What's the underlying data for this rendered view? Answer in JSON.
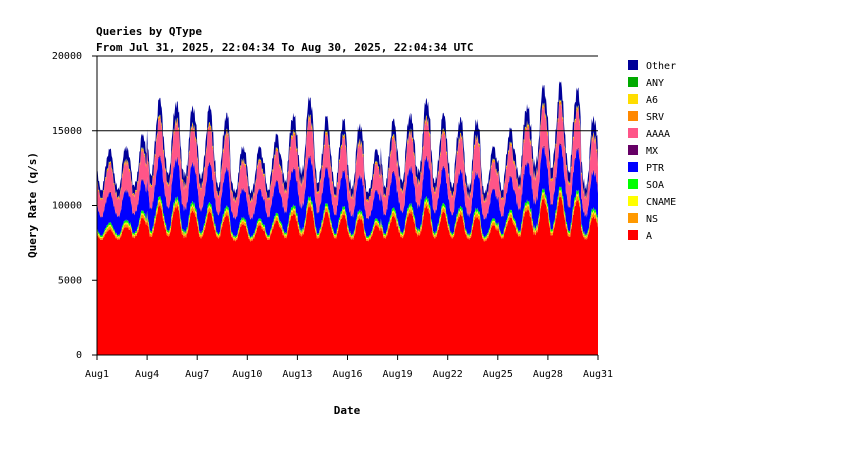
{
  "chart_data": {
    "type": "area",
    "stacked": true,
    "title": "Queries by QType",
    "subtitle": "From Jul 31, 2025, 22:04:34 To Aug 30, 2025, 22:04:34 UTC",
    "xlabel": "Date",
    "ylabel": "Query Rate (q/s)",
    "ylim": [
      0,
      20000
    ],
    "yticks": [
      0,
      5000,
      10000,
      15000,
      20000
    ],
    "xlim_days": [
      0,
      30
    ],
    "xticks": [
      {
        "label": "Aug1",
        "day": 0
      },
      {
        "label": "Aug4",
        "day": 3
      },
      {
        "label": "Aug7",
        "day": 6
      },
      {
        "label": "Aug10",
        "day": 9
      },
      {
        "label": "Aug13",
        "day": 12
      },
      {
        "label": "Aug16",
        "day": 15
      },
      {
        "label": "Aug19",
        "day": 18
      },
      {
        "label": "Aug22",
        "day": 21
      },
      {
        "label": "Aug25",
        "day": 24
      },
      {
        "label": "Aug28",
        "day": 27
      },
      {
        "label": "Aug31",
        "day": 30
      }
    ],
    "gridlines": [
      15000
    ],
    "legend_position": "right",
    "legend_order": [
      "Other",
      "ANY",
      "A6",
      "SRV",
      "AAAA",
      "MX",
      "PTR",
      "SOA",
      "CNAME",
      "NS",
      "A"
    ],
    "stack_order": [
      "A",
      "NS",
      "CNAME",
      "SOA",
      "PTR",
      "MX",
      "AAAA",
      "SRV",
      "A6",
      "ANY",
      "Other"
    ],
    "series_colors": {
      "A": "#ff0000",
      "NS": "#ff9900",
      "CNAME": "#ffff00",
      "SOA": "#00ff00",
      "PTR": "#0000ff",
      "MX": "#660066",
      "AAAA": "#ff5588",
      "SRV": "#ff8800",
      "A6": "#ffdd00",
      "ANY": "#00aa00",
      "Other": "#000099"
    },
    "daily_peak_total": [
      13800,
      14000,
      14800,
      17200,
      17000,
      16700,
      16700,
      16200,
      14000,
      14000,
      14800,
      16200,
      17300,
      16000,
      15800,
      15500,
      13800,
      15800,
      16200,
      17200,
      16200,
      15900,
      15800,
      14000,
      15200,
      16800,
      18100,
      18300,
      17900,
      16000
    ],
    "daily_trough_total": [
      11000,
      11000,
      11200,
      12000,
      12000,
      11800,
      11800,
      11200,
      10800,
      10800,
      11000,
      11500,
      12000,
      11500,
      11200,
      11000,
      10800,
      11200,
      11500,
      12000,
      11500,
      11200,
      11000,
      10800,
      11000,
      11800,
      12500,
      12500,
      12200,
      11000
    ],
    "daily_peak_A": [
      8400,
      8600,
      9200,
      10000,
      10000,
      9700,
      9600,
      9400,
      8800,
      8700,
      9000,
      9500,
      10000,
      9600,
      9400,
      9200,
      8700,
      9300,
      9600,
      10000,
      9600,
      9400,
      9300,
      8700,
      9200,
      9800,
      10500,
      10600,
      10400,
      9300
    ],
    "daily_trough_A": [
      7700,
      7700,
      7800,
      7900,
      7900,
      7800,
      7800,
      7800,
      7600,
      7600,
      7700,
      7800,
      7900,
      7800,
      7800,
      7700,
      7600,
      7800,
      7800,
      7900,
      7800,
      7800,
      7700,
      7600,
      7800,
      7900,
      8000,
      8000,
      7900,
      7700
    ],
    "series_share_of_remainder": {
      "NS": 0.045,
      "CNAME": 0.02,
      "SOA": 0.035,
      "PTR": 0.42,
      "MX": 0.015,
      "AAAA": 0.39,
      "SRV": 0.03,
      "A6": 0.01,
      "ANY": 0.005,
      "Other": 0.18
    }
  }
}
